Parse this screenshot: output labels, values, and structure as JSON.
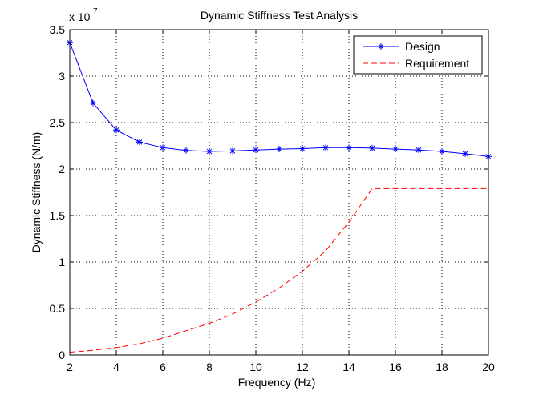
{
  "chart_data": {
    "type": "line",
    "title": "Dynamic Stiffness Test Analysis",
    "xlabel": "Frequency (Hz)",
    "ylabel": "Dynamic Stiffness (N/m)",
    "y_multiplier_base": "x 10",
    "y_multiplier_exponent": "7",
    "xlim": [
      2,
      20
    ],
    "ylim": [
      0,
      3.5
    ],
    "y_scale": 10000000,
    "xticks": [
      2,
      4,
      6,
      8,
      10,
      12,
      14,
      16,
      18,
      20
    ],
    "xtick_labels": [
      "2",
      "4",
      "6",
      "8",
      "10",
      "12",
      "14",
      "16",
      "18",
      "20"
    ],
    "yticks": [
      0,
      0.5,
      1,
      1.5,
      2,
      2.5,
      3,
      3.5
    ],
    "ytick_labels": [
      "0",
      "0.5",
      "1",
      "1.5",
      "2",
      "2.5",
      "3",
      "3.5"
    ],
    "grid": true,
    "legend_position": "top-right",
    "series": [
      {
        "name": "Design",
        "color": "#0000ff",
        "line_style": "solid",
        "marker": "asterisk",
        "x": [
          2,
          3,
          4,
          5,
          6,
          7,
          8,
          9,
          10,
          11,
          12,
          13,
          14,
          15,
          16,
          17,
          18,
          19,
          20
        ],
        "y": [
          3.36,
          2.71,
          2.42,
          2.29,
          2.23,
          2.2,
          2.19,
          2.195,
          2.205,
          2.215,
          2.22,
          2.23,
          2.23,
          2.225,
          2.215,
          2.205,
          2.19,
          2.165,
          2.135
        ]
      },
      {
        "name": "Requirement",
        "color": "#ff0000",
        "line_style": "dashed",
        "marker": "none",
        "x": [
          2,
          3,
          4,
          5,
          6,
          7,
          8,
          9,
          10,
          11,
          12,
          13,
          14,
          15,
          16,
          17,
          18,
          19,
          20
        ],
        "y": [
          0.03,
          0.05,
          0.08,
          0.12,
          0.18,
          0.26,
          0.34,
          0.44,
          0.57,
          0.72,
          0.9,
          1.12,
          1.43,
          1.79,
          1.79,
          1.79,
          1.79,
          1.79,
          1.79
        ]
      }
    ]
  }
}
